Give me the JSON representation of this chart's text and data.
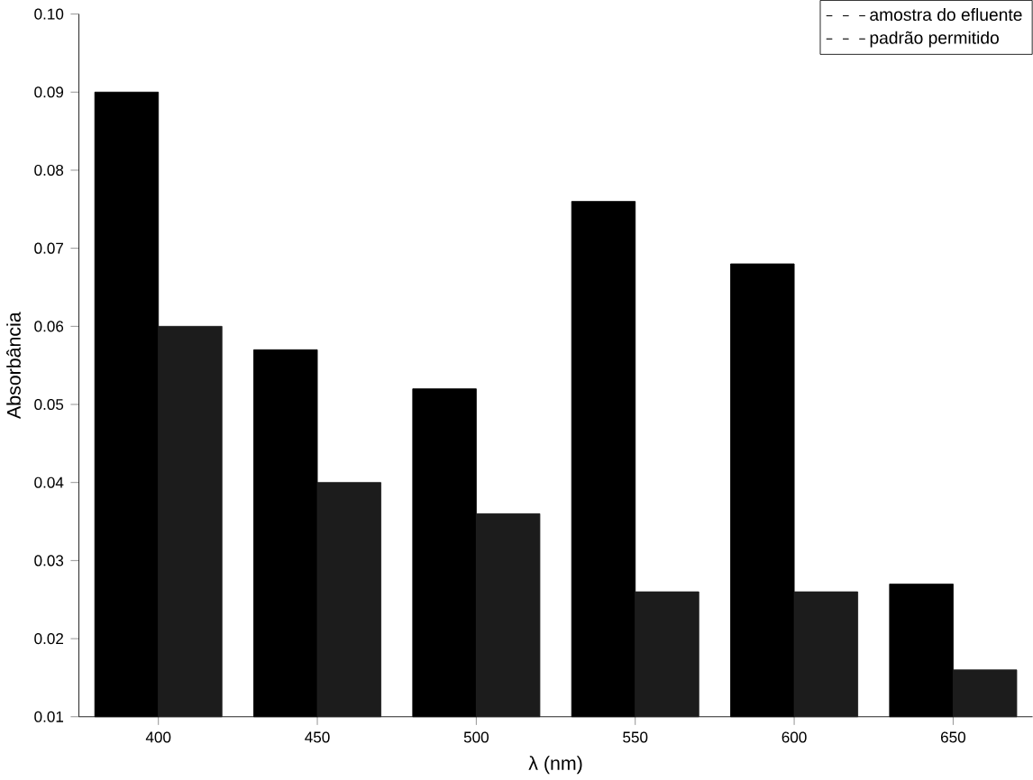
{
  "chart_data": {
    "type": "bar",
    "xlabel": "λ (nm)",
    "ylabel": "Absorbância",
    "x": [
      400,
      450,
      500,
      550,
      600,
      650
    ],
    "series": [
      {
        "name": "amostra do efluente",
        "color": "#000000",
        "values": [
          0.09,
          0.057,
          0.052,
          0.076,
          0.068,
          0.027
        ]
      },
      {
        "name": "padrão permitido",
        "color": "#1c1c1c",
        "values": [
          0.06,
          0.04,
          0.036,
          0.026,
          0.026,
          0.016
        ]
      }
    ],
    "xlim": [
      375,
      675
    ],
    "xticks": [
      400,
      450,
      500,
      550,
      600,
      650
    ],
    "ylim": [
      0.01,
      0.1
    ],
    "yticks": [
      0.01,
      0.02,
      0.03,
      0.04,
      0.05,
      0.06,
      0.07,
      0.08,
      0.09,
      {
        "value": 0.1,
        "label": "0.10"
      }
    ],
    "legend": "top right",
    "grid": false
  }
}
